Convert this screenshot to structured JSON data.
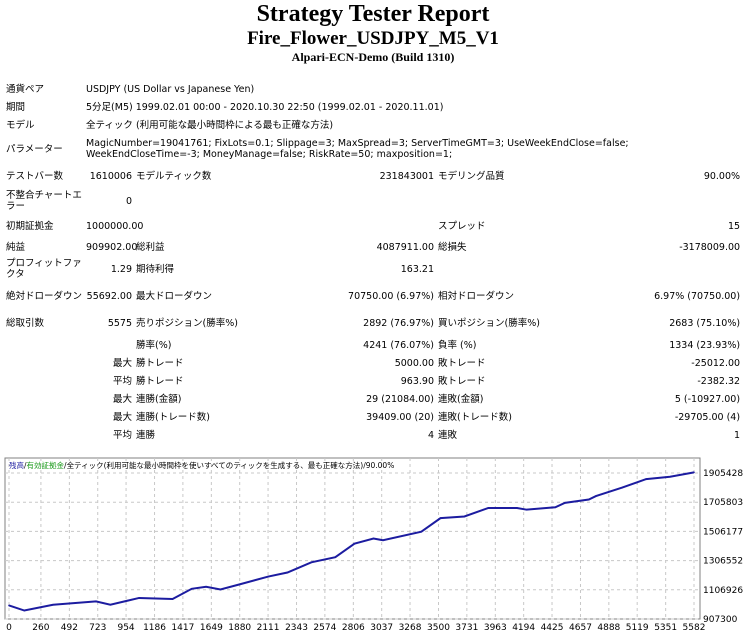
{
  "header": {
    "title": "Strategy Tester Report",
    "ea_name": "Fire_Flower_USDJPY_M5_V1",
    "server": "Alpari-ECN-Demo (Build 1310)"
  },
  "info": {
    "symbol_label": "通貨ペア",
    "symbol": "USDJPY (US Dollar vs Japanese Yen)",
    "period_label": "期間",
    "period": "5分足(M5) 1999.02.01 00:00 - 2020.10.30 22:50 (1999.02.01 - 2020.11.01)",
    "model_label": "モデル",
    "model": "全ティック (利用可能な最小時間枠による最も正確な方法)",
    "params_label": "パラメーター",
    "params": "MagicNumber=19041761; FixLots=0.1; Slippage=3; MaxSpread=3; ServerTimeGMT=3; UseWeekEndClose=false; WeekEndCloseTime=-3; MoneyManage=false; RiskRate=50; maxposition=1;"
  },
  "stats": {
    "bars_label": "テストバー数",
    "bars": "1610006",
    "ticks_label": "モデルティック数",
    "ticks": "231843001",
    "quality_label": "モデリング品質",
    "quality": "90.00%",
    "mismatch_label": "不整合チャートエラー",
    "mismatch": "0",
    "deposit_label": "初期証拠金",
    "deposit": "1000000.00",
    "spread_label": "スプレッド",
    "spread": "15",
    "net_label": "純益",
    "net": "909902.00",
    "gross_profit_label": "総利益",
    "gross_profit": "4087911.00",
    "gross_loss_label": "総損失",
    "gross_loss": "-3178009.00",
    "pf_label": "プロフィットファクタ",
    "pf": "1.29",
    "expected_label": "期待利得",
    "expected": "163.21",
    "abs_dd_label": "絶対ドローダウン",
    "abs_dd": "55692.00",
    "max_dd_label": "最大ドローダウン",
    "max_dd": "70750.00 (6.97%)",
    "rel_dd_label": "相対ドローダウン",
    "rel_dd": "6.97% (70750.00)",
    "trades_label": "総取引数",
    "trades": "5575",
    "short_label": "売りポジション(勝率%)",
    "short": "2892 (76.97%)",
    "long_label": "買いポジション(勝率%)",
    "long": "2683 (75.10%)",
    "win_label": "勝率(%)",
    "win": "4241 (76.07%)",
    "loss_label": "負率 (%)",
    "loss": "1334 (23.93%)",
    "max_label": "最大",
    "avg_label": "平均",
    "win_trade_label": "勝トレード",
    "loss_trade_label": "敗トレード",
    "largest_win": "5000.00",
    "largest_loss": "-25012.00",
    "avg_win": "963.90",
    "avg_loss": "-2382.32",
    "cons_win_money_label": "連勝(金額)",
    "cons_win_money": "29 (21084.00)",
    "cons_loss_money_label": "連敗(金額)",
    "cons_loss_money": "5 (-10927.00)",
    "cons_win_count_label": "連勝(トレード数)",
    "cons_win_count": "39409.00 (20)",
    "cons_loss_count_label": "連敗(トレード数)",
    "cons_loss_count": "-29705.00 (4)",
    "avg_cons_win_label": "連勝",
    "avg_cons_win": "4",
    "avg_cons_loss_label": "連敗",
    "avg_cons_loss": "1"
  },
  "chart_data": {
    "type": "line",
    "legend": {
      "balance": "残高",
      "equity": "有効証拠金",
      "model": "全ティック(利用可能な最小時間枠を使いすべてのティックを生成する、最も正確な方法)",
      "quality": "90.00%",
      "sep": "/"
    },
    "colors": {
      "line": "#1c1ca0",
      "balance_label": "#1c1ca0",
      "equity_label": "#1a9a1a",
      "grid": "#c8c8c8"
    },
    "grid": true,
    "xlim": [
      0,
      5582
    ],
    "ylim": [
      907300,
      1905428
    ],
    "x_ticks": [
      "0",
      "260",
      "492",
      "723",
      "954",
      "1186",
      "1417",
      "1649",
      "1880",
      "2111",
      "2343",
      "2574",
      "2806",
      "3037",
      "3268",
      "3500",
      "3731",
      "3963",
      "4194",
      "4425",
      "4657",
      "4888",
      "5119",
      "5351",
      "5582"
    ],
    "y_ticks": [
      "1905428",
      "1705803",
      "1506177",
      "1306552",
      "1106926",
      "907300"
    ],
    "series": [
      {
        "x": [
          0,
          125,
          359,
          709,
          826,
          1060,
          1333,
          1489,
          1606,
          1723,
          1879,
          2113,
          2269,
          2464,
          2659,
          2815,
          2970,
          3048,
          3360,
          3516,
          3711,
          3906,
          4140,
          4218,
          4452,
          4530,
          4725,
          4783,
          4997,
          5192,
          5387,
          5582
        ],
        "y": [
          1000000,
          965300,
          1004800,
          1028000,
          1004800,
          1051200,
          1044200,
          1113900,
          1127800,
          1109000,
          1144100,
          1197400,
          1225300,
          1294900,
          1329700,
          1422600,
          1457400,
          1445800,
          1503800,
          1596700,
          1608300,
          1666300,
          1666300,
          1654700,
          1671000,
          1701100,
          1724300,
          1747600,
          1805600,
          1863700,
          1879900,
          1909902
        ]
      }
    ]
  }
}
